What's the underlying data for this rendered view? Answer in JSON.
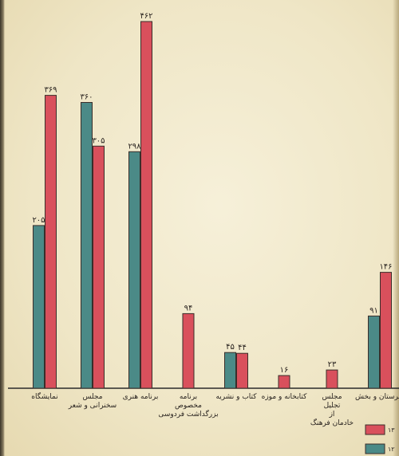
{
  "chart_data": {
    "type": "bar",
    "title": "",
    "xlabel": "",
    "ylabel": "",
    "ylim": [
      0,
      470
    ],
    "grid": false,
    "legend_position": "bottom-right",
    "colors": {
      "red": "#d9505c",
      "teal": "#4b8a87"
    },
    "categories": [
      {
        "lines": [
          "نمایشگاه"
        ],
        "red": 369,
        "red_label": "۳۶۹",
        "teal": 205,
        "teal_label": "۲۰۵"
      },
      {
        "lines": [
          "مجلس",
          "سخنرانی و شعر"
        ],
        "red": 305,
        "red_label": "۳۰۵",
        "teal": 360,
        "teal_label": "۳۶۰"
      },
      {
        "lines": [
          "برنامه هنری"
        ],
        "red": 462,
        "red_label": "۴۶۲",
        "teal": 298,
        "teal_label": "۲۹۸"
      },
      {
        "lines": [
          "برنامه",
          "مخصوص",
          "بزرگداشت فردوسی"
        ],
        "red": 94,
        "red_label": "۹۴",
        "teal": null,
        "teal_label": ""
      },
      {
        "lines": [
          "کتاب و نشریه"
        ],
        "red": 44,
        "red_label": "۴۴",
        "teal": 45,
        "teal_label": "۴۵"
      },
      {
        "lines": [
          "کتابخانه و موزه"
        ],
        "red": 16,
        "red_label": "۱۶",
        "teal": null,
        "teal_label": ""
      },
      {
        "lines": [
          "مجلس",
          "تجلیل",
          "از",
          "خادمان فرهنگ"
        ],
        "red": 23,
        "red_label": "۲۳",
        "teal": null,
        "teal_label": ""
      },
      {
        "lines": [
          "هنرستان و بخش"
        ],
        "red": 146,
        "red_label": "۱۴۶",
        "teal": 91,
        "teal_label": "۹۱"
      }
    ],
    "legend": [
      {
        "key": "red",
        "label": "۱۳"
      },
      {
        "key": "teal",
        "label": "۱۲"
      }
    ]
  }
}
